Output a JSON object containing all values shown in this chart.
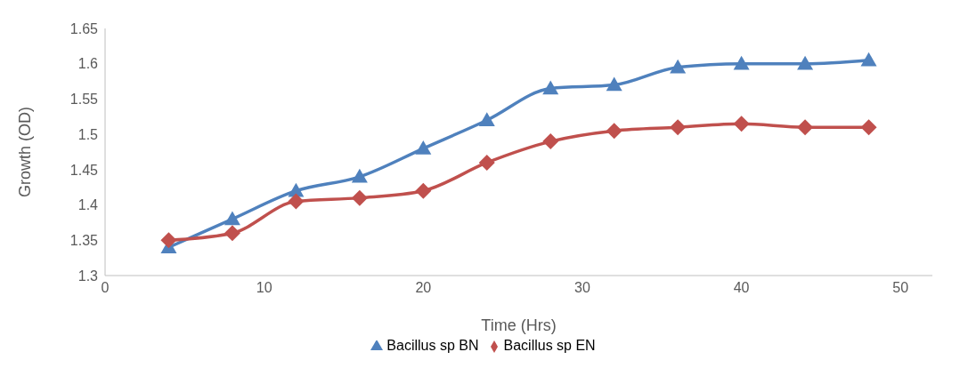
{
  "chart_data": {
    "type": "line",
    "xlabel": "Time (Hrs)",
    "ylabel": "Growth (OD)",
    "x": [
      4,
      8,
      12,
      16,
      20,
      24,
      28,
      32,
      36,
      40,
      44,
      48
    ],
    "series": [
      {
        "name": "Bacillus sp BN",
        "color": "#4f81bd",
        "marker": "triangle",
        "values": [
          1.34,
          1.38,
          1.42,
          1.44,
          1.48,
          1.52,
          1.565,
          1.57,
          1.595,
          1.6,
          1.6,
          1.605
        ]
      },
      {
        "name": "Bacillus sp EN",
        "color": "#c0504d",
        "marker": "diamond",
        "values": [
          1.35,
          1.36,
          1.405,
          1.41,
          1.42,
          1.46,
          1.49,
          1.505,
          1.51,
          1.515,
          1.51,
          1.51
        ]
      }
    ],
    "xlim": [
      0,
      52
    ],
    "xticks": [
      0,
      10,
      20,
      30,
      40,
      50
    ],
    "ylim": [
      1.3,
      1.65
    ],
    "yticks": [
      1.3,
      1.35,
      1.4,
      1.45,
      1.5,
      1.55,
      1.6,
      1.65
    ],
    "grid": false,
    "legend": "bottom",
    "line_style": "solid"
  }
}
